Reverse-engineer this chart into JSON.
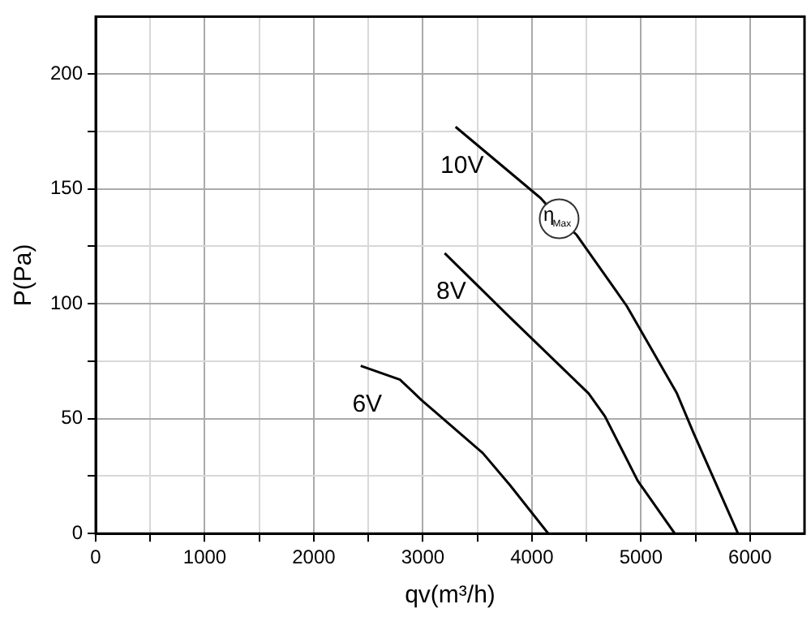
{
  "chart_data": {
    "type": "line",
    "xlabel": "qv(m³/h)",
    "ylabel": "P(Pa)",
    "xlim": [
      0,
      6500
    ],
    "ylim": [
      0,
      225
    ],
    "xticks": [
      0,
      {
        "value": 500,
        "label": null
      },
      1000,
      {
        "value": 1500,
        "label": null
      },
      2000,
      {
        "value": 2500,
        "label": null
      },
      3000,
      {
        "value": 3500,
        "label": null
      },
      4000,
      {
        "value": 4500,
        "label": null
      },
      5000,
      {
        "value": 5500,
        "label": null
      },
      6000
    ],
    "yticks": [
      0,
      {
        "value": 25,
        "label": null
      },
      50,
      {
        "value": 75,
        "label": null
      },
      100,
      {
        "value": 125,
        "label": null
      },
      150,
      {
        "value": 175,
        "label": null
      },
      200
    ],
    "grid": true,
    "legend": false,
    "marker": "none",
    "line_style": "solid",
    "series": [
      {
        "name": "10V",
        "color": "#000000",
        "x": [
          3300,
          4080,
          4250,
          4410,
          4870,
          5330,
          5480,
          5890
        ],
        "values": [
          177,
          146,
          137,
          130,
          99,
          61,
          44,
          0
        ]
      },
      {
        "name": "8V",
        "color": "#000000",
        "x": [
          3200,
          3800,
          4520,
          4670,
          4970,
          5310
        ],
        "values": [
          122,
          94,
          61,
          51,
          23,
          0
        ]
      },
      {
        "name": "6V",
        "color": "#000000",
        "x": [
          2430,
          2790,
          2990,
          3550,
          3800,
          4150
        ],
        "values": [
          73,
          67,
          58,
          35,
          21,
          0
        ]
      }
    ],
    "annotations": [
      {
        "text": "η$_{Max}$",
        "x": 4250,
        "y": 137
      }
    ]
  }
}
